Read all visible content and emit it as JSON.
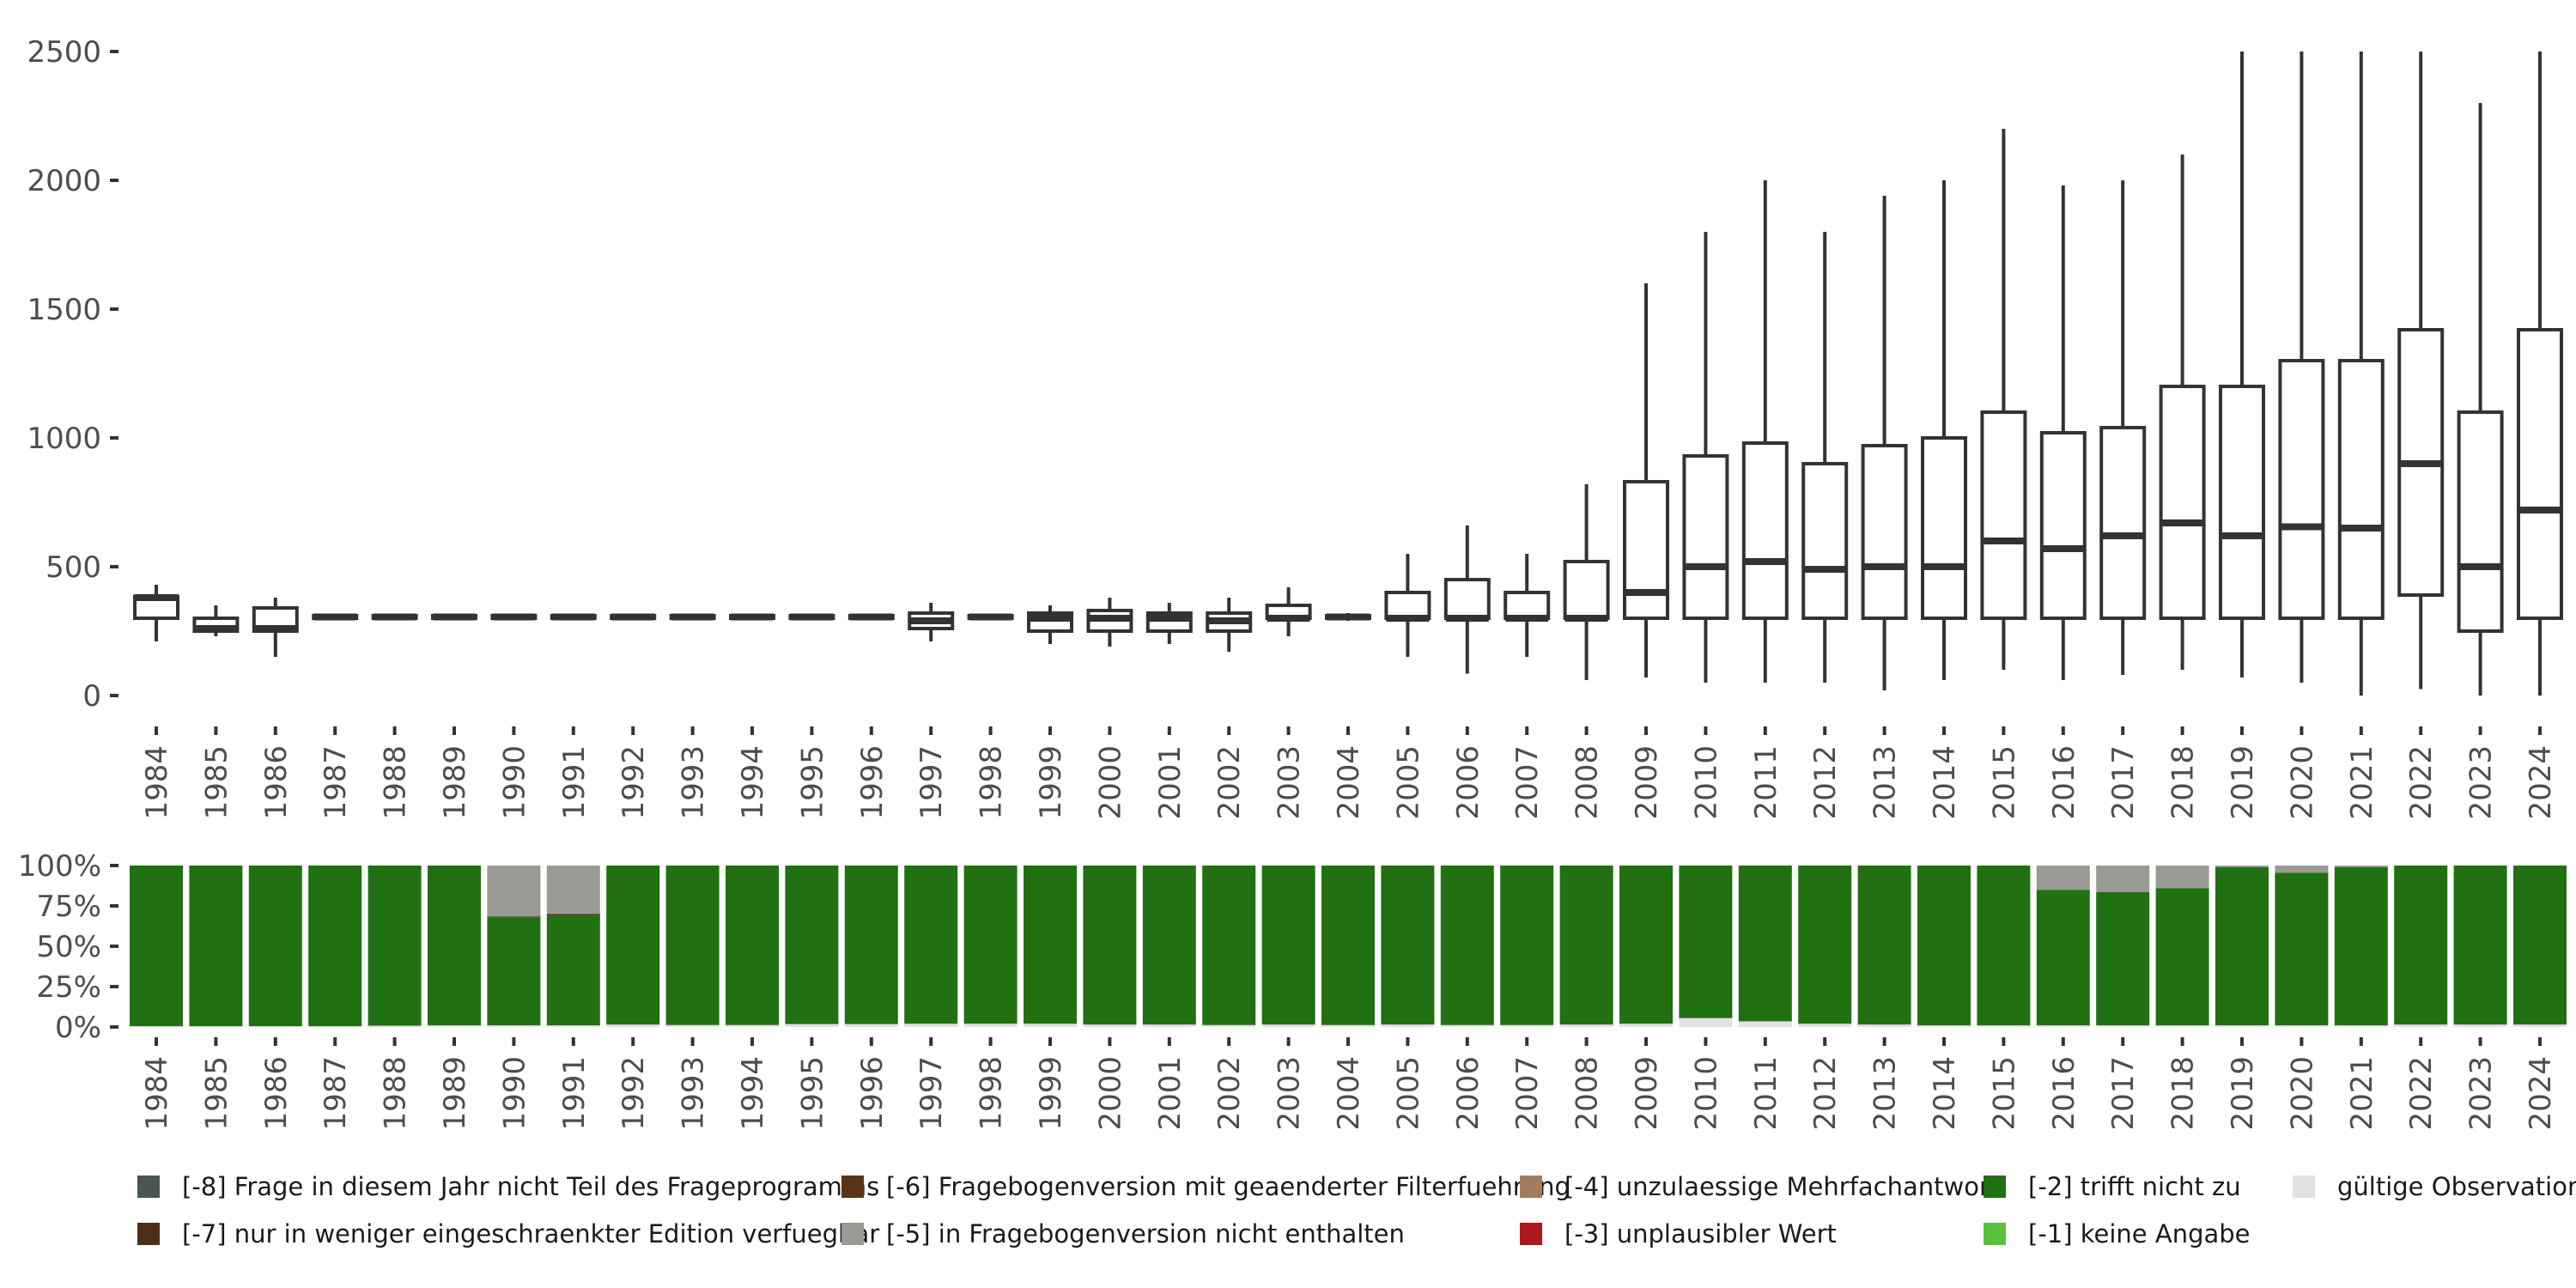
{
  "chart_data": [
    {
      "type": "boxplot",
      "ylim": [
        0,
        2500
      ],
      "yticks": [
        "0",
        "500",
        "1000",
        "1500",
        "2000",
        "2500"
      ],
      "categories": [
        "1984",
        "1985",
        "1986",
        "1987",
        "1988",
        "1989",
        "1990",
        "1991",
        "1992",
        "1993",
        "1994",
        "1995",
        "1996",
        "1997",
        "1998",
        "1999",
        "2000",
        "2001",
        "2002",
        "2003",
        "2004",
        "2005",
        "2006",
        "2007",
        "2008",
        "2009",
        "2010",
        "2011",
        "2012",
        "2013",
        "2014",
        "2015",
        "2016",
        "2017",
        "2018",
        "2019",
        "2020",
        "2021",
        "2022",
        "2023",
        "2024"
      ],
      "boxes": [
        {
          "whisker_low": 210,
          "q1": 300,
          "median": 380,
          "q3": 385,
          "whisker_high": 430
        },
        {
          "whisker_low": 230,
          "q1": 250,
          "median": 260,
          "q3": 300,
          "whisker_high": 350
        },
        {
          "whisker_low": 150,
          "q1": 250,
          "median": 260,
          "q3": 340,
          "whisker_high": 380
        },
        {
          "whisker_low": 300,
          "q1": 300,
          "median": 305,
          "q3": 310,
          "whisker_high": 310
        },
        {
          "whisker_low": 300,
          "q1": 300,
          "median": 305,
          "q3": 310,
          "whisker_high": 310
        },
        {
          "whisker_low": 300,
          "q1": 300,
          "median": 305,
          "q3": 310,
          "whisker_high": 310
        },
        {
          "whisker_low": 300,
          "q1": 300,
          "median": 305,
          "q3": 310,
          "whisker_high": 310
        },
        {
          "whisker_low": 300,
          "q1": 300,
          "median": 305,
          "q3": 310,
          "whisker_high": 310
        },
        {
          "whisker_low": 300,
          "q1": 300,
          "median": 305,
          "q3": 310,
          "whisker_high": 310
        },
        {
          "whisker_low": 300,
          "q1": 300,
          "median": 305,
          "q3": 310,
          "whisker_high": 310
        },
        {
          "whisker_low": 300,
          "q1": 300,
          "median": 305,
          "q3": 310,
          "whisker_high": 310
        },
        {
          "whisker_low": 300,
          "q1": 300,
          "median": 305,
          "q3": 310,
          "whisker_high": 310
        },
        {
          "whisker_low": 300,
          "q1": 300,
          "median": 305,
          "q3": 310,
          "whisker_high": 310
        },
        {
          "whisker_low": 210,
          "q1": 260,
          "median": 290,
          "q3": 320,
          "whisker_high": 360
        },
        {
          "whisker_low": 300,
          "q1": 300,
          "median": 305,
          "q3": 310,
          "whisker_high": 310
        },
        {
          "whisker_low": 200,
          "q1": 250,
          "median": 300,
          "q3": 320,
          "whisker_high": 350
        },
        {
          "whisker_low": 190,
          "q1": 250,
          "median": 300,
          "q3": 330,
          "whisker_high": 380
        },
        {
          "whisker_low": 200,
          "q1": 250,
          "median": 300,
          "q3": 320,
          "whisker_high": 360
        },
        {
          "whisker_low": 170,
          "q1": 250,
          "median": 290,
          "q3": 320,
          "whisker_high": 380
        },
        {
          "whisker_low": 230,
          "q1": 300,
          "median": 300,
          "q3": 350,
          "whisker_high": 420
        },
        {
          "whisker_low": 290,
          "q1": 300,
          "median": 305,
          "q3": 310,
          "whisker_high": 320
        },
        {
          "whisker_low": 150,
          "q1": 300,
          "median": 300,
          "q3": 400,
          "whisker_high": 550
        },
        {
          "whisker_low": 85,
          "q1": 300,
          "median": 300,
          "q3": 450,
          "whisker_high": 660
        },
        {
          "whisker_low": 150,
          "q1": 300,
          "median": 300,
          "q3": 400,
          "whisker_high": 550
        },
        {
          "whisker_low": 60,
          "q1": 300,
          "median": 300,
          "q3": 520,
          "whisker_high": 820
        },
        {
          "whisker_low": 70,
          "q1": 300,
          "median": 400,
          "q3": 830,
          "whisker_high": 1600
        },
        {
          "whisker_low": 50,
          "q1": 300,
          "median": 500,
          "q3": 930,
          "whisker_high": 1800
        },
        {
          "whisker_low": 50,
          "q1": 300,
          "median": 520,
          "q3": 980,
          "whisker_high": 2000
        },
        {
          "whisker_low": 50,
          "q1": 300,
          "median": 490,
          "q3": 900,
          "whisker_high": 1800
        },
        {
          "whisker_low": 20,
          "q1": 300,
          "median": 500,
          "q3": 970,
          "whisker_high": 1940
        },
        {
          "whisker_low": 60,
          "q1": 300,
          "median": 500,
          "q3": 1000,
          "whisker_high": 2000
        },
        {
          "whisker_low": 100,
          "q1": 300,
          "median": 600,
          "q3": 1100,
          "whisker_high": 2200
        },
        {
          "whisker_low": 60,
          "q1": 300,
          "median": 570,
          "q3": 1020,
          "whisker_high": 1980
        },
        {
          "whisker_low": 80,
          "q1": 300,
          "median": 620,
          "q3": 1040,
          "whisker_high": 2000
        },
        {
          "whisker_low": 100,
          "q1": 300,
          "median": 670,
          "q3": 1200,
          "whisker_high": 2100
        },
        {
          "whisker_low": 70,
          "q1": 300,
          "median": 620,
          "q3": 1200,
          "whisker_high": 2500
        },
        {
          "whisker_low": 50,
          "q1": 300,
          "median": 655,
          "q3": 1300,
          "whisker_high": 2500
        },
        {
          "whisker_low": 0,
          "q1": 300,
          "median": 650,
          "q3": 1300,
          "whisker_high": 2500
        },
        {
          "whisker_low": 25,
          "q1": 390,
          "median": 900,
          "q3": 1420,
          "whisker_high": 2500
        },
        {
          "whisker_low": 0,
          "q1": 250,
          "median": 500,
          "q3": 1100,
          "whisker_high": 2300
        },
        {
          "whisker_low": 0,
          "q1": 300,
          "median": 720,
          "q3": 1420,
          "whisker_high": 2500
        }
      ]
    },
    {
      "type": "stacked_bar_percent",
      "ylim": [
        0,
        1
      ],
      "yticks": [
        "0%",
        "25%",
        "50%",
        "75%",
        "100%"
      ],
      "categories": [
        "1984",
        "1985",
        "1986",
        "1987",
        "1988",
        "1989",
        "1990",
        "1991",
        "1992",
        "1993",
        "1994",
        "1995",
        "1996",
        "1997",
        "1998",
        "1999",
        "2000",
        "2001",
        "2002",
        "2003",
        "2004",
        "2005",
        "2006",
        "2007",
        "2008",
        "2009",
        "2010",
        "2011",
        "2012",
        "2013",
        "2014",
        "2015",
        "2016",
        "2017",
        "2018",
        "2019",
        "2020",
        "2021",
        "2022",
        "2023",
        "2024"
      ],
      "series": [
        {
          "name": "gültige Observationen",
          "color": "#e2e2e2",
          "values": [
            0.005,
            0.005,
            0.005,
            0.005,
            0.008,
            0.01,
            0.01,
            0.01,
            0.015,
            0.012,
            0.012,
            0.018,
            0.018,
            0.02,
            0.02,
            0.02,
            0.015,
            0.015,
            0.012,
            0.015,
            0.012,
            0.015,
            0.012,
            0.012,
            0.015,
            0.02,
            0.055,
            0.035,
            0.02,
            0.015,
            0.01,
            0.01,
            0.01,
            0.01,
            0.01,
            0.01,
            0.01,
            0.01,
            0.015,
            0.015,
            0.015
          ]
        },
        {
          "name": "[-2] trifft nicht zu",
          "color": "#217012",
          "values": [
            0.995,
            0.995,
            0.995,
            0.995,
            0.992,
            0.99,
            0.67,
            0.68,
            0.985,
            0.988,
            0.988,
            0.982,
            0.982,
            0.98,
            0.98,
            0.98,
            0.985,
            0.985,
            0.988,
            0.985,
            0.988,
            0.985,
            0.988,
            0.988,
            0.985,
            0.98,
            0.945,
            0.965,
            0.98,
            0.985,
            0.99,
            0.99,
            0.84,
            0.825,
            0.85,
            0.98,
            0.945,
            0.98,
            0.985,
            0.985,
            0.985
          ]
        },
        {
          "name": "[-7] nur in weniger eingeschraenkter Edition verfuegbar",
          "color": "#4d2e17",
          "values": [
            0,
            0,
            0,
            0,
            0,
            0,
            0.005,
            0.01,
            0,
            0,
            0,
            0,
            0,
            0,
            0,
            0,
            0,
            0,
            0,
            0,
            0,
            0,
            0,
            0,
            0,
            0,
            0,
            0,
            0,
            0,
            0,
            0,
            0,
            0,
            0,
            0,
            0,
            0,
            0,
            0,
            0
          ]
        },
        {
          "name": "[-5] in Fragebogenversion nicht enthalten",
          "color": "#989a94",
          "values": [
            0,
            0,
            0,
            0,
            0,
            0,
            0.315,
            0.3,
            0,
            0,
            0,
            0,
            0,
            0,
            0,
            0,
            0,
            0,
            0,
            0,
            0,
            0,
            0,
            0,
            0,
            0,
            0,
            0,
            0,
            0,
            0,
            0,
            0.15,
            0.165,
            0.14,
            0.01,
            0.045,
            0.01,
            0,
            0,
            0
          ]
        }
      ]
    }
  ],
  "legend": [
    {
      "label": "[-8] Frage in diesem Jahr nicht Teil des Frageprogramms",
      "color": "#4a5550"
    },
    {
      "label": "[-7] nur in weniger eingeschraenkter Edition verfuegbar",
      "color": "#4d2e17"
    },
    {
      "label": "[-6] Fragebogenversion mit geaenderter Filterfuehrung",
      "color": "#5b3418"
    },
    {
      "label": "[-5] in Fragebogenversion nicht enthalten",
      "color": "#989a94"
    },
    {
      "label": "[-4] unzulaessige Mehrfachantwort",
      "color": "#a57b5e"
    },
    {
      "label": "[-3] unplausibler Wert",
      "color": "#b0171b"
    },
    {
      "label": "[-2] trifft nicht zu",
      "color": "#217012"
    },
    {
      "label": "[-1] keine Angabe",
      "color": "#58c13f"
    },
    {
      "label": "gültige Observationen",
      "color": "#e2e2e2"
    }
  ]
}
